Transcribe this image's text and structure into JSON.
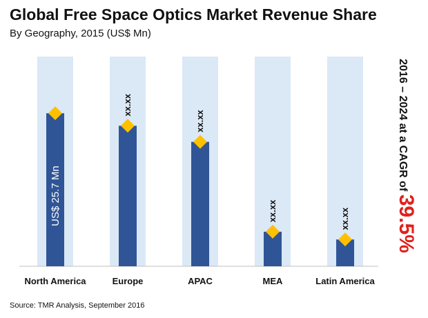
{
  "header": {
    "title": "Global Free Space Optics Market Revenue Share",
    "subtitle": "By Geography, 2015 (US$ Mn)"
  },
  "side_note": {
    "text": "2016 – 2024 at a CAGR of",
    "value": "39.5%"
  },
  "footer": {
    "source": "Source: TMR Analysis, September 2016"
  },
  "colors": {
    "bar": "#2f5597",
    "band": "#dbe8f6",
    "marker": "#ffc000",
    "cagr": "#e0201c"
  },
  "chart_data": {
    "type": "bar",
    "title": "Global Free Space Optics Market Revenue Share",
    "subtitle": "By Geography, 2015 (US$ Mn)",
    "categories": [
      "North America",
      "Europe",
      "APAC",
      "MEA",
      "Latin America"
    ],
    "values": [
      25.7,
      23.6,
      20.9,
      5.8,
      4.5
    ],
    "data_labels": [
      "US$ 25.7 Mn",
      "xx.xx",
      "xx.xx",
      "xx.xx",
      "xx.xx"
    ],
    "ylim": [
      0,
      38
    ],
    "xlabel": "",
    "ylabel": "",
    "grid": false,
    "legend": "none"
  }
}
